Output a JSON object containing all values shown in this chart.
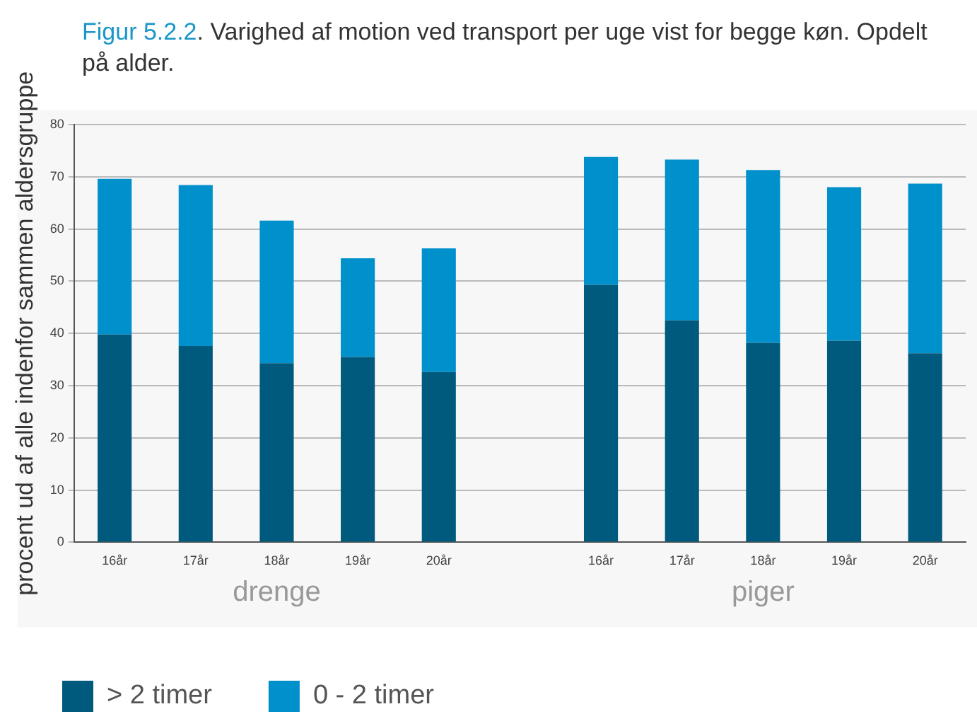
{
  "chart_data": {
    "type": "bar",
    "title": "Figur 5.2.2. Varighed af motion ved transport per uge vist for begge køn. Opdelt på alder.",
    "ylabel": "procent ud af alle indenfor sammen aldersgruppe",
    "categories": [
      "16år",
      "17år",
      "18år",
      "19år",
      "20år",
      null,
      "16år",
      "17år",
      "18år",
      "19år",
      "20år"
    ],
    "series": [
      {
        "name": "> 2 timer",
        "color": "#005a7e",
        "values": [
          39.8,
          37.6,
          34.3,
          35.5,
          32.6,
          null,
          49.3,
          42.5,
          38.2,
          38.6,
          36.2
        ]
      },
      {
        "name": "0 - 2 timer",
        "color": "#0090cc",
        "values": [
          29.8,
          30.8,
          27.3,
          18.9,
          23.7,
          null,
          24.5,
          30.8,
          33.1,
          29.4,
          32.5
        ]
      }
    ],
    "stacked": true,
    "ylim": [
      0,
      80
    ],
    "yticks": [
      0,
      10,
      20,
      30,
      40,
      50,
      60,
      70,
      80
    ],
    "grid": "y",
    "legend": "bottom left",
    "annotations": [
      "drenge",
      "piger"
    ]
  }
}
